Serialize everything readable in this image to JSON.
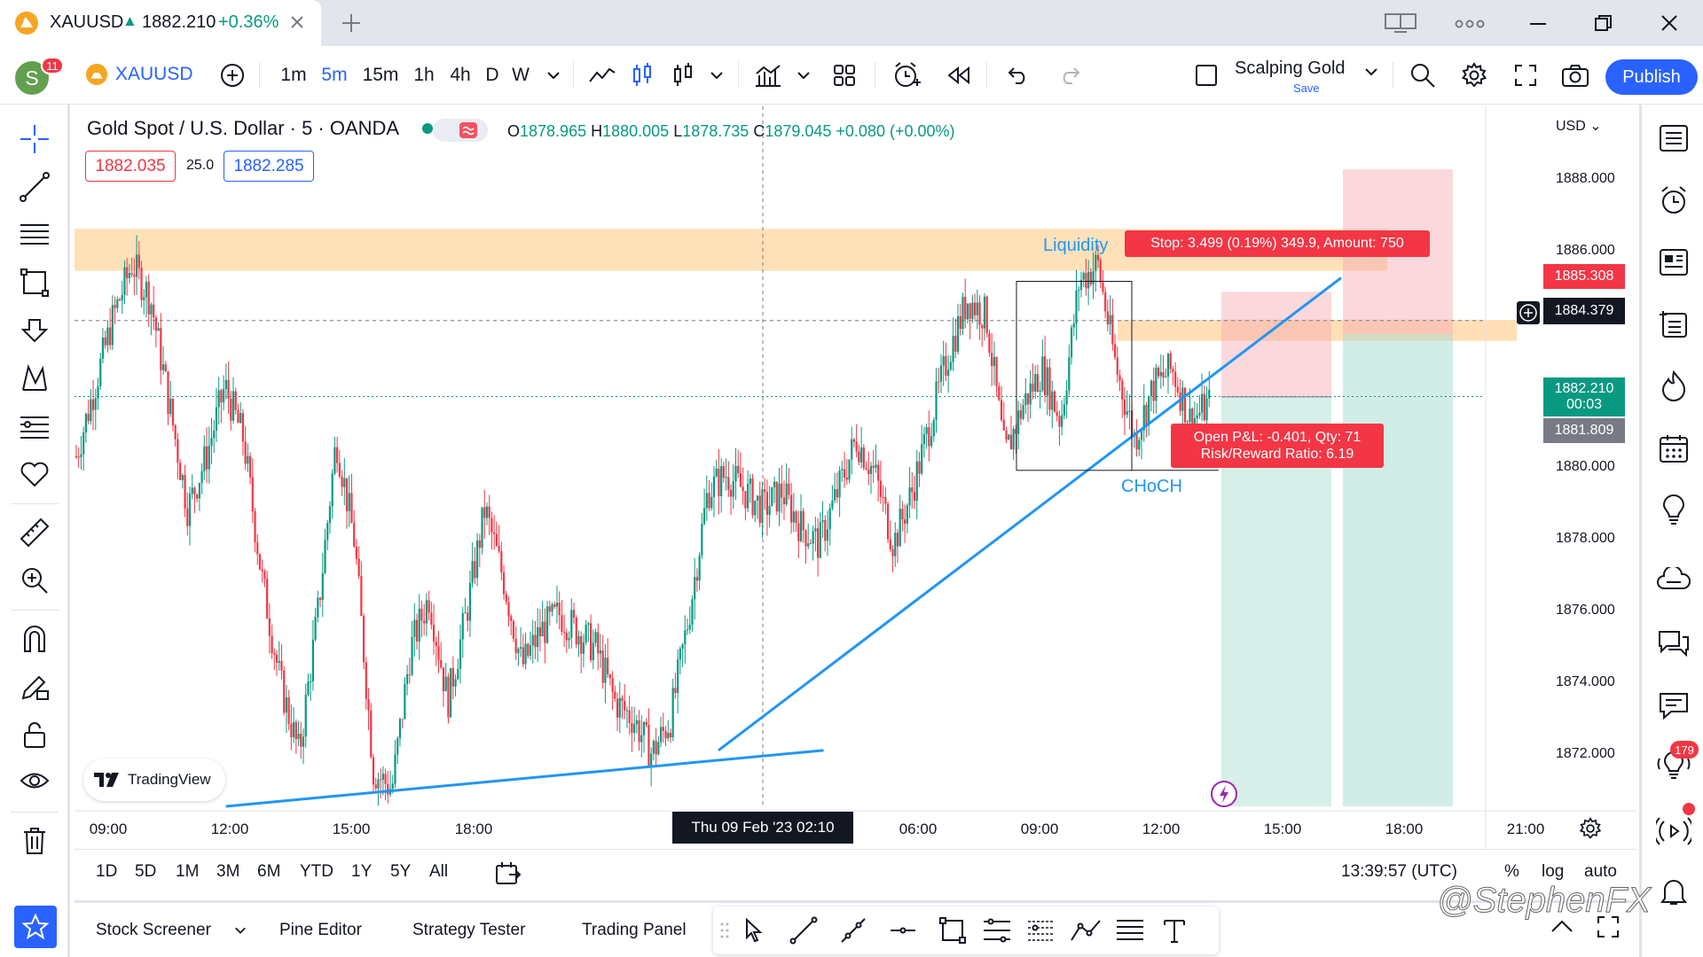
{
  "tab": {
    "symbol": "XAUUSD",
    "arrow": "▲",
    "price": "1882.210",
    "change": "+0.36%"
  },
  "toolbar": {
    "avatar_letter": "S",
    "notif_count": "11",
    "symbol": "XAUUSD",
    "intervals": [
      "1m",
      "5m",
      "15m",
      "1h",
      "4h",
      "D",
      "W"
    ],
    "active_interval": "5m",
    "layout_name": "Scalping Gold",
    "layout_save": "Save",
    "publish": "Publish"
  },
  "chart": {
    "legend_title": "Gold Spot / U.S. Dollar · 5 · OANDA",
    "ohlc": {
      "o_label": "O",
      "o": "1878.965",
      "h_label": "H",
      "h": "1880.005",
      "l_label": "L",
      "l": "1878.735",
      "c_label": "C",
      "c": "1879.045",
      "chg": "+0.080 (+0.00%)"
    },
    "buy_price": "1882.035",
    "spread": "25.0",
    "sell_price": "1882.285",
    "currency": "USD",
    "tradingview_logo": "TradingView",
    "annotations": {
      "liquidity": "Liquidity",
      "choch": "CHoCH"
    },
    "position": {
      "stop": "Stop: 3.499 (0.19%) 349.9, Amount: 750",
      "pl_line1": "Open P&L: -0.401, Qty: 71",
      "pl_line2": "Risk/Reward Ratio: 6.19"
    },
    "price_tags": {
      "upper": "1885.308",
      "crosshair": "1884.379",
      "current": "1882.210",
      "countdown": "00:03",
      "lower": "1881.809"
    },
    "y_ticks": [
      "1888.000",
      "1886.000",
      "1880.000",
      "1878.000",
      "1876.000",
      "1874.000",
      "1872.000"
    ],
    "x_ticks": [
      "09:00",
      "12:00",
      "15:00",
      "18:00",
      "06:00",
      "09:00",
      "12:00",
      "15:00",
      "18:00",
      "21:00"
    ],
    "x_cursor": "Thu 09 Feb '23   02:10"
  },
  "chart_data": {
    "type": "candlestick",
    "symbol": "XAUUSD",
    "interval": "5m",
    "y_ticks": [
      1872,
      1874,
      1876,
      1878,
      1880,
      1886,
      1888
    ],
    "ylim": [
      1870.5,
      1890.5
    ],
    "close_series": [
      1880.5,
      1882.5,
      1884.5,
      1886,
      1885,
      1882,
      1879,
      1880.5,
      1882.5,
      1881,
      1877,
      1874,
      1872,
      1876,
      1881,
      1878,
      1871.5,
      1871,
      1875,
      1876.5,
      1873.5,
      1876,
      1879,
      1877,
      1874.5,
      1875.5,
      1876,
      1875.5,
      1875,
      1873.5,
      1873,
      1872,
      1873,
      1876,
      1879.5,
      1880,
      1879.5,
      1879,
      1879.5,
      1878.5,
      1878,
      1879.5,
      1881,
      1880,
      1878,
      1879.5,
      1881.5,
      1883.5,
      1885,
      1884.5,
      1880.5,
      1882,
      1883,
      1881.5,
      1885.5,
      1886,
      1883,
      1881,
      1882.5,
      1883,
      1881.5,
      1882
    ],
    "horizontal_zones": [
      {
        "from": 1885.8,
        "to": 1887.0
      },
      {
        "from": 1883.8,
        "to": 1884.4
      }
    ],
    "trendline": {
      "points": [
        [
          1,
          1870.5
        ],
        [
          38,
          1872
        ],
        [
          80,
          1885.5
        ]
      ]
    },
    "position": {
      "side": "long",
      "entry": 1882.2,
      "stop_label": "Stop: 3.499 (0.19%) 349.9, Amount: 750",
      "rr": 6.19,
      "qty": 71,
      "pnl": -0.401
    }
  },
  "range": {
    "items": [
      "1D",
      "5D",
      "1M",
      "3M",
      "6M",
      "YTD",
      "1Y",
      "5Y",
      "All"
    ],
    "time": "13:39:57 (UTC)",
    "pct": "%",
    "log": "log",
    "auto": "auto"
  },
  "bottom": {
    "tabs": [
      "Stock Screener",
      "Pine Editor",
      "Strategy Tester",
      "Trading Panel"
    ],
    "watermark": "@StephenFX"
  }
}
